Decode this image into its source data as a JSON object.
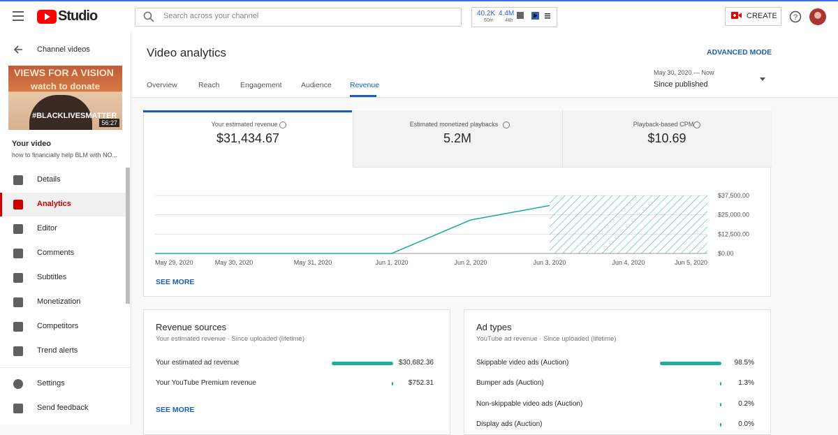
{
  "header": {
    "logo": "Studio",
    "search_placeholder": "Search across your channel",
    "stats": [
      {
        "value": "40.2K",
        "period": "60m"
      },
      {
        "value": "4.4M",
        "period": "48h"
      }
    ],
    "create": "CREATE"
  },
  "sidebar": {
    "back": "Channel videos",
    "thumbnail": {
      "line1": "VIEWS FOR A VISION",
      "line2": "watch to donate",
      "line3": "#BLACKLIVESMATTER",
      "duration": "56:27"
    },
    "video_label": "Your video",
    "video_title": "how to financially help BLM with NO...",
    "nav": [
      "Details",
      "Analytics",
      "Editor",
      "Comments",
      "Subtitles",
      "Monetization",
      "Competitors",
      "Trend alerts"
    ],
    "footer": [
      "Settings",
      "Send feedback"
    ]
  },
  "main": {
    "title": "Video analytics",
    "advanced": "ADVANCED MODE",
    "tabs": [
      "Overview",
      "Reach",
      "Engagement",
      "Audience",
      "Revenue"
    ],
    "date_range": "May 30, 2020 — Now",
    "date_label": "Since published",
    "metrics": [
      {
        "label": "Your estimated revenue",
        "value": "$31,434.67"
      },
      {
        "label": "Estimated monetized playbacks",
        "value": "5.2M"
      },
      {
        "label": "Playback-based CPM",
        "value": "$10.69"
      }
    ],
    "chart": {
      "type": "line",
      "x": [
        "May 29, 2020",
        "May 30, 2020",
        "May 31, 2020",
        "Jun 1, 2020",
        "Jun 2, 2020",
        "Jun 3, 2020",
        "Jun 4, 2020",
        "Jun 5, 2020"
      ],
      "series": [
        {
          "color": "#1fae9c",
          "values": [
            0,
            0,
            0,
            0,
            21700,
            31000,
            null,
            null
          ]
        }
      ],
      "ylim": [
        0,
        37500
      ],
      "yticks": [
        {
          "value": 0,
          "label": "$0.00"
        },
        {
          "value": 12500,
          "label": "$12,500.00"
        },
        {
          "value": 25000,
          "label": "$25,000.00"
        },
        {
          "value": 37500,
          "label": "$37,500.00"
        }
      ],
      "grid": true
    },
    "see_more": "SEE MORE",
    "revenue_sources": {
      "title": "Revenue sources",
      "subtitle": "Your estimated revenue · Since uploaded (lifetime)",
      "rows": [
        {
          "label": "Your estimated ad revenue",
          "value": 30682.36,
          "value_label": "$30,682.36"
        },
        {
          "label": "Your YouTube Premium revenue",
          "value": 752.31,
          "value_label": "$752.31"
        }
      ],
      "see_more": "SEE MORE"
    },
    "ad_types": {
      "title": "Ad types",
      "subtitle": "YouTube ad revenue · Since uploaded (lifetime)",
      "rows": [
        {
          "label": "Skippable video ads (Auction)",
          "value": 98.5,
          "value_label": "98.5%"
        },
        {
          "label": "Bumper ads (Auction)",
          "value": 1.3,
          "value_label": "1.3%"
        },
        {
          "label": "Non-skippable video ads (Auction)",
          "value": 0.2,
          "value_label": "0.2%"
        },
        {
          "label": "Display ads (Auction)",
          "value": 0.0,
          "value_label": "0.0%"
        }
      ]
    }
  }
}
